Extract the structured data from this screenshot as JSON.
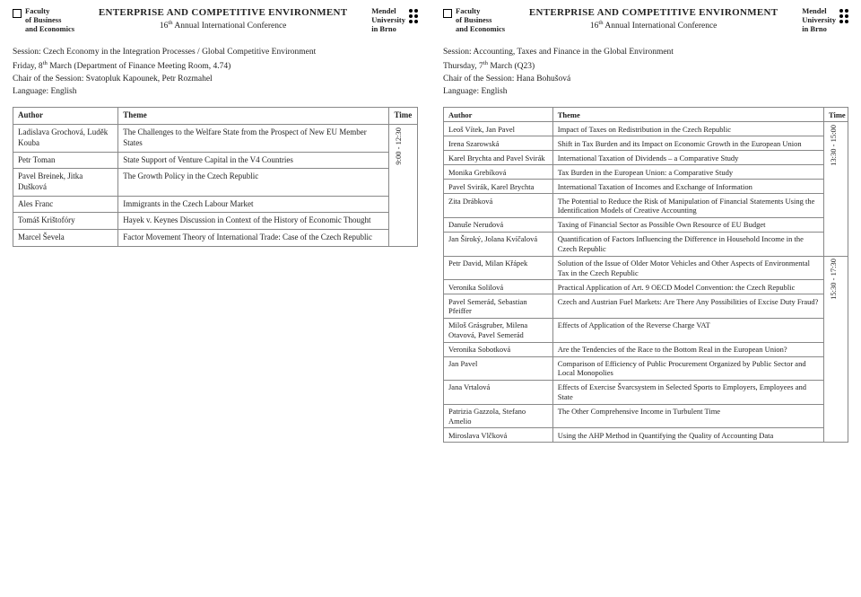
{
  "header": {
    "faculty_line1": "Faculty",
    "faculty_line2": "of Business",
    "faculty_line3": "and Economics",
    "title": "ENTERPRISE AND COMPETITIVE ENVIRONMENT",
    "subtitle_prefix": "16",
    "subtitle_suffix": " Annual International Conference",
    "uni_line1": "Mendel",
    "uni_line2": "University",
    "uni_line3": "in Brno"
  },
  "left": {
    "session_title": "Session: Czech Economy in the Integration Processes / Global Competitive Environment",
    "date_prefix": "Friday, 8",
    "date_suffix": " March (Department of Finance Meeting Room, 4.74)",
    "chair": "Chair of the Session: Svatopluk Kapounek, Petr Rozmahel",
    "lang": "Language: English",
    "cols": {
      "author": "Author",
      "theme": "Theme",
      "time": "Time"
    },
    "time_label": "9:00 - 12:30",
    "rows": [
      {
        "author": "Ladislava Grochová, Luděk Kouba",
        "theme": "The Challenges to the Welfare State from the Prospect of New EU Member States"
      },
      {
        "author": "Petr Toman",
        "theme": "State Support of Venture Capital in the V4 Countries"
      },
      {
        "author": "Pavel Breinek, Jitka Dušková",
        "theme": "The Growth Policy in the Czech Republic"
      },
      {
        "author": "Ales Franc",
        "theme": "Immigrants in the Czech Labour Market"
      },
      {
        "author": "Tomáš Krištofóry",
        "theme": "Hayek v. Keynes Discussion in Context of the History of Economic Thought"
      },
      {
        "author": "Marcel Ševela",
        "theme": "Factor Movement Theory of International Trade: Case of the Czech Republic"
      }
    ]
  },
  "right": {
    "session_title": "Session: Accounting, Taxes and Finance in the Global Environment",
    "date_prefix": "Thursday, 7",
    "date_suffix": " March (Q23)",
    "chair": "Chair of the Session: Hana Bohušová",
    "lang": "Language: English",
    "cols": {
      "author": "Author",
      "theme": "Theme",
      "time": "Time"
    },
    "time1": "13:30 - 15:00",
    "time2": "15:30 - 17:30",
    "rows1": [
      {
        "author": "Leoš Vítek, Jan Pavel",
        "theme": "Impact of Taxes on Redistribution in the Czech Republic"
      },
      {
        "author": "Irena Szarowská",
        "theme": "Shift in Tax Burden and its Impact on Economic Growth in the European Union"
      },
      {
        "author": "Karel Brychta and Pavel Svirák",
        "theme": "International Taxation of Dividends – a Comparative Study"
      },
      {
        "author": "Monika Grebíková",
        "theme": "Tax Burden in the European Union: a Comparative Study"
      },
      {
        "author": "Pavel Svirák, Karel Brychta",
        "theme": "International Taxation of Incomes and Exchange of Information"
      },
      {
        "author": "Zita Drábková",
        "theme": "The Potential to Reduce the Risk of Manipulation of Financial Statements Using the Identification Models of Creative Accounting"
      },
      {
        "author": "Danuše Nerudová",
        "theme": "Taxing of Financial Sector as Possible Own Resource of EU Budget"
      },
      {
        "author": "Jan Široký, Jolana Kvíčalová",
        "theme": "Quantification of Factors Influencing the Difference in Household Income in the Czech Republic"
      }
    ],
    "rows2": [
      {
        "author": "Petr David, Milan Křápek",
        "theme": "Solution of the Issue of Older Motor Vehicles and Other Aspects of Environmental Tax in the Czech Republic"
      },
      {
        "author": "Veronika Solilová",
        "theme": "Practical Application of Art. 9 OECD Model Convention: the Czech Republic"
      },
      {
        "author": "Pavel Semerád, Sebastian Pfeiffer",
        "theme": "Czech and Austrian Fuel Markets: Are There Any Possibilities of Excise Duty Fraud?"
      },
      {
        "author": "Miloš Grásgruber, Milena Otavová, Pavel Semerád",
        "theme": "Effects of Application of the Reverse Charge VAT"
      },
      {
        "author": "Veronika Sobotková",
        "theme": "Are the Tendencies of the Race to the Bottom Real in the European Union?"
      },
      {
        "author": "Jan Pavel",
        "theme": "Comparison of Efficiency of Public Procurement Organized by Public Sector and Local Monopolies"
      },
      {
        "author": "Jana Vrtalová",
        "theme": "Effects of Exercise Švarcsystem in Selected Sports to Employers, Employees and State"
      },
      {
        "author": "Patrizia Gazzola, Stefano Amelio",
        "theme": "The Other Comprehensive Income in Turbulent Time"
      },
      {
        "author": "Miroslava Vlčková",
        "theme": "Using the AHP Method in Quantifying the Quality of Accounting Data"
      }
    ]
  }
}
